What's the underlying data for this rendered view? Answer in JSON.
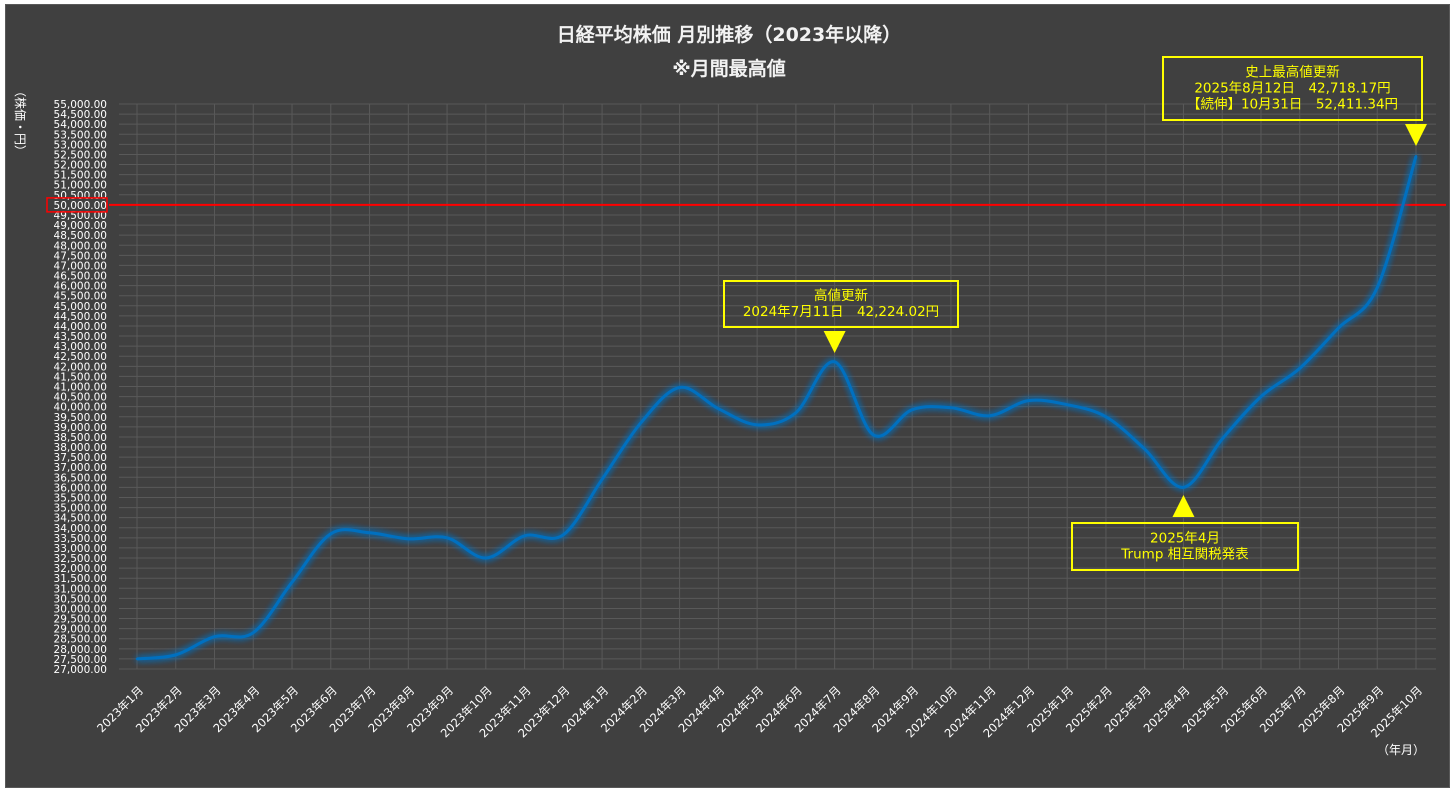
{
  "chart_data": {
    "type": "line",
    "title": "日経平均株価 月別推移（2023年以降）",
    "subtitle": "※月間最高値",
    "ylabel": "（株価・円）",
    "xlabel": "（年月）",
    "ylim": [
      27000,
      55000
    ],
    "ystep": 500,
    "grid": true,
    "categories": [
      "2023年1月",
      "2023年2月",
      "2023年3月",
      "2023年4月",
      "2023年5月",
      "2023年6月",
      "2023年7月",
      "2023年8月",
      "2023年9月",
      "2023年10月",
      "2023年11月",
      "2023年12月",
      "2024年1月",
      "2024年2月",
      "2024年3月",
      "2024年4月",
      "2024年5月",
      "2024年6月",
      "2024年7月",
      "2024年8月",
      "2024年9月",
      "2024年10月",
      "2024年11月",
      "2024年12月",
      "2025年1月",
      "2025年2月",
      "2025年3月",
      "2025年4月",
      "2025年5月",
      "2025年6月",
      "2025年7月",
      "2025年8月",
      "2025年9月",
      "2025年10月"
    ],
    "series": [
      {
        "color": "#0070c0",
        "values": [
          27500,
          27700,
          28600,
          28800,
          31300,
          33700,
          33750,
          33450,
          33500,
          32500,
          33600,
          33650,
          36400,
          39200,
          40950,
          39900,
          39100,
          39700,
          42224.02,
          38600,
          39850,
          39950,
          39550,
          40300,
          40100,
          39500,
          37900,
          36000,
          38400,
          40500,
          41900,
          43900,
          45900,
          52411.34
        ]
      }
    ],
    "reference_line": {
      "value": 50000,
      "color": "#ff0000"
    },
    "highlighted_tick": {
      "value": 50000,
      "label": "50,000.00",
      "color": "#ff0000"
    },
    "annotations": [
      {
        "lines": [
          "高値更新",
          "2024年7月11日　42,224.02円"
        ],
        "arrow": "down",
        "index": 18
      },
      {
        "lines": [
          "2025年4月",
          "Trump 相互関税発表"
        ],
        "arrow": "up",
        "index": 27
      },
      {
        "lines": [
          "史上最高値更新",
          "2025年8月12日　42,718.17円",
          "【続伸】10月31日　52,411.34円"
        ],
        "arrow": "down",
        "index": 33
      }
    ],
    "colors": {
      "background": "#404040",
      "grid": "#595959",
      "annotation": "#ffff00"
    }
  }
}
